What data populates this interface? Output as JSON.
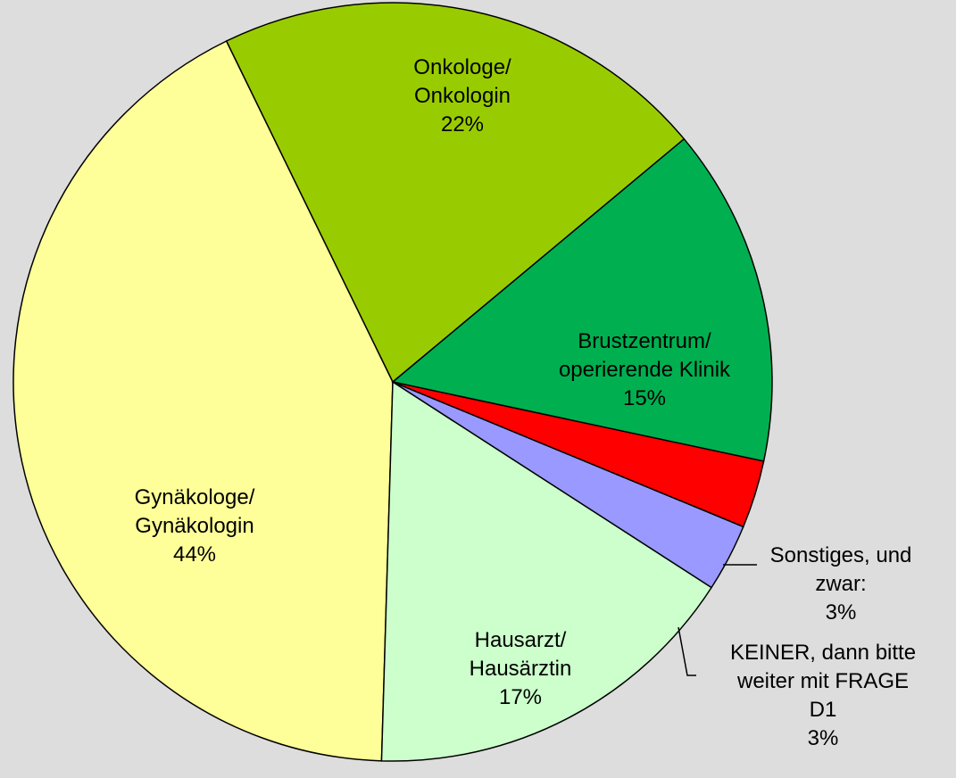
{
  "chart_data": {
    "type": "pie",
    "categories": [
      "Onkologe/ Onkologin",
      "Brustzentrum/ operierende Klinik",
      "Sonstiges, und zwar:",
      "KEINER, dann bitte weiter mit FRAGE D1",
      "Hausarzt/ Hausärztin",
      "Gynäkologe/ Gynäkologin"
    ],
    "values": [
      22,
      15,
      3,
      3,
      17,
      44
    ],
    "value_labels": [
      "22%",
      "15%",
      "3%",
      "3%",
      "17%",
      "44%"
    ],
    "colors": [
      "#99cc00",
      "#00b050",
      "#ff0000",
      "#9999ff",
      "#ccffcc",
      "#ffff99"
    ]
  }
}
